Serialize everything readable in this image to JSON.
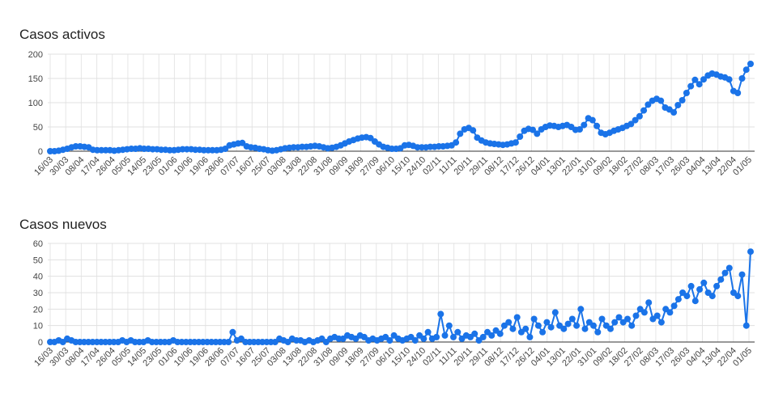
{
  "chart_data": [
    {
      "type": "line",
      "title": "Casos activos",
      "ylim": [
        0,
        200
      ],
      "yticks": [
        "0",
        "50",
        "100",
        "150",
        "200"
      ],
      "grid": true,
      "color": "#1a73e8",
      "xticks": [
        "16/03",
        "30/03",
        "08/04",
        "17/04",
        "26/04",
        "05/05",
        "14/05",
        "23/05",
        "01/06",
        "10/06",
        "19/06",
        "28/06",
        "07/07",
        "16/07",
        "25/07",
        "03/08",
        "13/08",
        "22/08",
        "31/08",
        "09/09",
        "18/09",
        "27/09",
        "06/10",
        "15/10",
        "24/10",
        "02/11",
        "11/11",
        "20/11",
        "29/11",
        "08/12",
        "17/12",
        "26/12",
        "04/01",
        "13/01",
        "22/01",
        "31/01",
        "09/02",
        "18/02",
        "27/02",
        "08/03",
        "17/03",
        "26/03",
        "04/04",
        "13/04",
        "22/04",
        "01/05"
      ],
      "series": [
        {
          "values": [
            0,
            0,
            1,
            3,
            5,
            8,
            10,
            10,
            9,
            8,
            3,
            2,
            2,
            2,
            2,
            1,
            2,
            3,
            4,
            5,
            5,
            6,
            5,
            5,
            4,
            4,
            3,
            3,
            2,
            2,
            3,
            4,
            4,
            4,
            3,
            3,
            2,
            2,
            2,
            2,
            3,
            5,
            12,
            14,
            16,
            17,
            10,
            8,
            7,
            5,
            4,
            2,
            1,
            2,
            4,
            6,
            7,
            8,
            8,
            9,
            9,
            10,
            11,
            10,
            8,
            6,
            7,
            9,
            12,
            16,
            20,
            23,
            26,
            28,
            29,
            27,
            20,
            14,
            9,
            7,
            5,
            5,
            6,
            12,
            13,
            11,
            8,
            8,
            8,
            9,
            9,
            10,
            10,
            11,
            12,
            18,
            36,
            45,
            48,
            43,
            28,
            22,
            18,
            16,
            15,
            14,
            13,
            14,
            16,
            18,
            30,
            42,
            46,
            44,
            36,
            45,
            50,
            53,
            52,
            50,
            52,
            54,
            50,
            44,
            45,
            54,
            68,
            64,
            52,
            38,
            35,
            38,
            42,
            45,
            48,
            52,
            56,
            64,
            72,
            84,
            96,
            104,
            108,
            104,
            90,
            86,
            80,
            95,
            105,
            120,
            134,
            147,
            138,
            148,
            156,
            160,
            158,
            154,
            152,
            148,
            124,
            120,
            150,
            168,
            180
          ]
        }
      ]
    },
    {
      "type": "line",
      "title": "Casos nuevos",
      "ylim": [
        0,
        60
      ],
      "yticks": [
        "0",
        "10",
        "20",
        "30",
        "40",
        "50",
        "60"
      ],
      "grid": true,
      "color": "#1a73e8",
      "xticks": [
        "16/03",
        "30/03",
        "08/04",
        "17/04",
        "26/04",
        "05/05",
        "14/05",
        "23/05",
        "01/06",
        "10/06",
        "19/06",
        "28/06",
        "07/07",
        "16/07",
        "25/07",
        "03/08",
        "13/08",
        "22/08",
        "31/08",
        "09/09",
        "18/09",
        "27/09",
        "06/10",
        "15/10",
        "24/10",
        "02/11",
        "11/11",
        "20/11",
        "29/11",
        "08/12",
        "17/12",
        "26/12",
        "04/01",
        "13/01",
        "22/01",
        "31/01",
        "09/02",
        "18/02",
        "27/02",
        "08/03",
        "17/03",
        "26/03",
        "04/04",
        "13/04",
        "22/04",
        "01/05"
      ],
      "series": [
        {
          "values": [
            0,
            0,
            1,
            0,
            2,
            1,
            0,
            0,
            0,
            0,
            0,
            0,
            0,
            0,
            0,
            0,
            0,
            1,
            0,
            1,
            0,
            0,
            0,
            1,
            0,
            0,
            0,
            0,
            0,
            1,
            0,
            0,
            0,
            0,
            0,
            0,
            0,
            0,
            0,
            0,
            0,
            0,
            0,
            6,
            1,
            2,
            0,
            0,
            0,
            0,
            0,
            0,
            0,
            0,
            2,
            1,
            0,
            2,
            1,
            1,
            0,
            1,
            0,
            1,
            2,
            0,
            2,
            3,
            2,
            2,
            4,
            3,
            2,
            4,
            3,
            1,
            2,
            1,
            2,
            3,
            1,
            4,
            2,
            1,
            2,
            3,
            1,
            4,
            2,
            6,
            2,
            3,
            17,
            4,
            10,
            3,
            6,
            2,
            4,
            3,
            5,
            1,
            3,
            6,
            4,
            7,
            5,
            10,
            12,
            8,
            15,
            6,
            8,
            3,
            14,
            10,
            6,
            12,
            9,
            18,
            10,
            8,
            11,
            14,
            10,
            20,
            8,
            12,
            10,
            6,
            14,
            10,
            8,
            12,
            15,
            12,
            14,
            10,
            16,
            20,
            18,
            24,
            14,
            16,
            12,
            20,
            18,
            22,
            26,
            30,
            28,
            34,
            25,
            32,
            36,
            30,
            28,
            34,
            38,
            42,
            45,
            30,
            28,
            41,
            10,
            55
          ]
        }
      ]
    }
  ]
}
